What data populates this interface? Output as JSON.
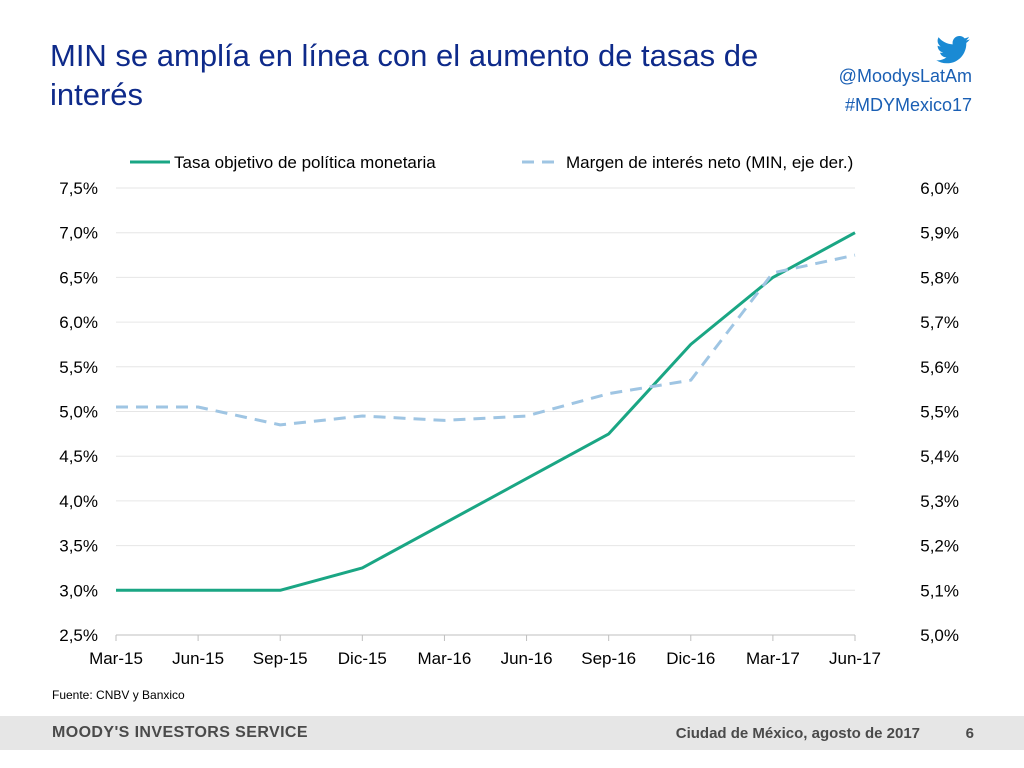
{
  "slide": {
    "title": "MIN se amplía en línea con el aumento de tasas de interés",
    "twitter_handle": "@MoodysLatAm",
    "hashtag": "#MDYMexico17",
    "source": "Fuente: CNBV y Banxico",
    "footer_brand": "MOODY'S INVESTORS SERVICE",
    "footer_place_date": "Ciudad de México, agosto de 2017",
    "page_number": "6"
  },
  "colors": {
    "title": "#0e2a8a",
    "series_policy_rate": "#1aa684",
    "series_nim": "#9fc5e3",
    "social": "#1a5fb4"
  },
  "chart_data": {
    "type": "line",
    "categories": [
      "Mar-15",
      "Jun-15",
      "Sep-15",
      "Dic-15",
      "Mar-16",
      "Jun-16",
      "Sep-16",
      "Dic-16",
      "Mar-17",
      "Jun-17"
    ],
    "series": [
      {
        "name": "Tasa objetivo de política monetaria",
        "axis": "left",
        "style": "solid",
        "color": "#1aa684",
        "values": [
          3.0,
          3.0,
          3.0,
          3.25,
          3.75,
          4.25,
          4.75,
          5.75,
          6.5,
          7.0
        ]
      },
      {
        "name": "Margen de interés neto (MIN, eje der.)",
        "axis": "right",
        "style": "dashed",
        "color": "#9fc5e3",
        "values": [
          5.51,
          5.51,
          5.47,
          5.49,
          5.48,
          5.49,
          5.54,
          5.57,
          5.81,
          5.85
        ]
      }
    ],
    "yleft": {
      "ylim": [
        2.5,
        7.5
      ],
      "ticks": [
        "7,5%",
        "7,0%",
        "6,5%",
        "6,0%",
        "5,5%",
        "5,0%",
        "4,5%",
        "4,0%",
        "3,5%",
        "3,0%",
        "2,5%"
      ]
    },
    "yright": {
      "ylim": [
        5.0,
        6.0
      ],
      "ticks": [
        "6,0%",
        "5,9%",
        "5,8%",
        "5,7%",
        "5,6%",
        "5,5%",
        "5,4%",
        "5,3%",
        "5,2%",
        "5,1%",
        "5,0%"
      ]
    },
    "grid": true,
    "legend_position": "top"
  }
}
